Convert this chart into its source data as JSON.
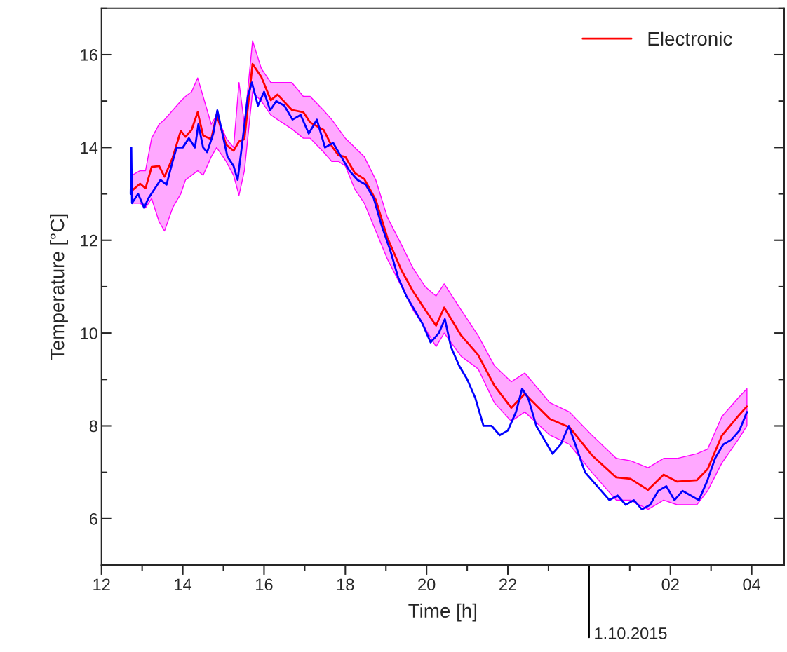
{
  "chart_data": {
    "type": "line",
    "xlabel": "Time [h]",
    "ylabel": "Temperature [°C]",
    "xlim": [
      "2015-09-30T12:00",
      "2015-10-01T04:48"
    ],
    "ylim": [
      5,
      17
    ],
    "xticks": [
      {
        "value": "2015-09-30T12:00",
        "label": "12"
      },
      {
        "value": "2015-09-30T13:00",
        "label": null
      },
      {
        "value": "2015-09-30T14:00",
        "label": "14"
      },
      {
        "value": "2015-09-30T15:00",
        "label": null
      },
      {
        "value": "2015-09-30T16:00",
        "label": "16"
      },
      {
        "value": "2015-09-30T17:00",
        "label": null
      },
      {
        "value": "2015-09-30T18:00",
        "label": "18"
      },
      {
        "value": "2015-09-30T19:00",
        "label": null
      },
      {
        "value": "2015-09-30T20:00",
        "label": "20"
      },
      {
        "value": "2015-09-30T21:00",
        "label": null
      },
      {
        "value": "2015-09-30T22:00",
        "label": "22"
      },
      {
        "value": "2015-09-30T23:00",
        "label": null
      },
      {
        "value": "2015-10-01T00:00",
        "label": null
      },
      {
        "value": "2015-10-01T01:00",
        "label": null
      },
      {
        "value": "2015-10-01T02:00",
        "label": "02"
      },
      {
        "value": "2015-10-01T03:00",
        "label": null
      },
      {
        "value": "2015-10-01T04:00",
        "label": "04"
      }
    ],
    "yticks": [
      {
        "value": 5,
        "label": null
      },
      6,
      {
        "value": 7,
        "label": null
      },
      8,
      {
        "value": 9,
        "label": null
      },
      10,
      {
        "value": 11,
        "label": null
      },
      12,
      {
        "value": 13,
        "label": null
      },
      14,
      {
        "value": 15,
        "label": null
      },
      16,
      {
        "value": 17,
        "label": null
      }
    ],
    "annotations": [
      "1.10.2015"
    ],
    "legend": "top right",
    "grid": false,
    "marker": "none",
    "line_style": "solid",
    "series": [
      {
        "name": "Electronic",
        "color": "#ff0000",
        "x": [
          "2015-09-30T12:45",
          "2015-09-30T12:57",
          "2015-09-30T13:05",
          "2015-09-30T13:14",
          "2015-09-30T13:25",
          "2015-09-30T13:33",
          "2015-09-30T13:45",
          "2015-09-30T13:57",
          "2015-09-30T14:04",
          "2015-09-30T14:13",
          "2015-09-30T14:22",
          "2015-09-30T14:30",
          "2015-09-30T14:42",
          "2015-09-30T14:50",
          "2015-09-30T15:04",
          "2015-09-30T15:15",
          "2015-09-30T15:23",
          "2015-09-30T15:31",
          "2015-09-30T15:43",
          "2015-09-30T15:56",
          "2015-09-30T16:10",
          "2015-09-30T16:20",
          "2015-09-30T16:41",
          "2015-09-30T16:58",
          "2015-09-30T17:08",
          "2015-09-30T17:28",
          "2015-09-30T17:40",
          "2015-09-30T17:50",
          "2015-09-30T18:00",
          "2015-09-30T18:14",
          "2015-09-30T18:28",
          "2015-09-30T18:45",
          "2015-09-30T19:02",
          "2015-09-30T19:23",
          "2015-09-30T19:40",
          "2015-09-30T19:58",
          "2015-09-30T20:14",
          "2015-09-30T20:26",
          "2015-09-30T20:51",
          "2015-09-30T21:16",
          "2015-09-30T21:40",
          "2015-09-30T22:05",
          "2015-09-30T22:25",
          "2015-09-30T23:02",
          "2015-09-30T23:31",
          "2015-10-01T00:04",
          "2015-10-01T00:40",
          "2015-10-01T01:01",
          "2015-10-01T01:27",
          "2015-10-01T01:50",
          "2015-10-01T02:10",
          "2015-10-01T02:39",
          "2015-10-01T02:55",
          "2015-10-01T03:16",
          "2015-10-01T03:40",
          "2015-10-01T03:53"
        ],
        "values": [
          13.07,
          13.22,
          13.12,
          13.58,
          13.6,
          13.37,
          13.78,
          14.36,
          14.23,
          14.38,
          14.76,
          14.26,
          14.18,
          14.71,
          14.06,
          13.93,
          14.13,
          14.18,
          15.8,
          15.52,
          15.02,
          15.14,
          14.81,
          14.76,
          14.54,
          14.38,
          14.03,
          13.83,
          13.8,
          13.45,
          13.32,
          12.87,
          12.06,
          11.35,
          10.9,
          10.5,
          10.16,
          10.55,
          9.95,
          9.53,
          8.87,
          8.39,
          8.69,
          8.15,
          7.97,
          7.37,
          6.89,
          6.86,
          6.62,
          6.95,
          6.8,
          6.83,
          7.07,
          7.79,
          8.21,
          8.42
        ],
        "upper": [
          13.4,
          13.5,
          13.5,
          14.2,
          14.5,
          14.6,
          14.8,
          15.0,
          15.1,
          15.2,
          15.5,
          15.1,
          14.5,
          14.7,
          14.2,
          14.0,
          15.4,
          14.5,
          16.3,
          15.7,
          15.4,
          15.4,
          15.4,
          15.1,
          15.1,
          14.8,
          14.6,
          14.4,
          14.2,
          14.0,
          13.8,
          13.3,
          12.5,
          11.9,
          11.4,
          11.0,
          10.8,
          11.06,
          10.5,
          9.95,
          9.3,
          8.95,
          9.14,
          8.5,
          8.3,
          7.8,
          7.3,
          7.25,
          7.1,
          7.3,
          7.3,
          7.4,
          7.5,
          8.2,
          8.6,
          8.8
        ],
        "lower": [
          12.8,
          12.8,
          12.7,
          12.9,
          12.4,
          12.2,
          12.7,
          13.0,
          13.3,
          13.4,
          13.5,
          13.4,
          13.8,
          14.0,
          13.7,
          13.4,
          12.97,
          13.5,
          15.2,
          15.0,
          14.7,
          14.6,
          14.4,
          14.2,
          14.2,
          13.9,
          13.7,
          13.7,
          13.6,
          13.1,
          12.8,
          12.2,
          11.6,
          11.0,
          10.5,
          10.1,
          9.71,
          10.0,
          9.5,
          9.23,
          8.5,
          8.1,
          8.3,
          7.8,
          7.6,
          7.0,
          6.4,
          6.4,
          6.2,
          6.4,
          6.3,
          6.3,
          6.6,
          7.2,
          7.7,
          8.0
        ]
      },
      {
        "color": "#0000ff",
        "x": [
          "2015-09-30T12:43",
          "2015-09-30T12:44",
          "2015-09-30T12:45",
          "2015-09-30T12:54",
          "2015-09-30T13:03",
          "2015-09-30T13:09",
          "2015-09-30T13:18",
          "2015-09-30T13:27",
          "2015-09-30T13:36",
          "2015-09-30T13:45",
          "2015-09-30T13:51",
          "2015-09-30T14:00",
          "2015-09-30T14:09",
          "2015-09-30T14:18",
          "2015-09-30T14:23",
          "2015-09-30T14:30",
          "2015-09-30T14:36",
          "2015-09-30T14:45",
          "2015-09-30T14:51",
          "2015-09-30T15:00",
          "2015-09-30T15:06",
          "2015-09-30T15:15",
          "2015-09-30T15:21",
          "2015-09-30T15:27",
          "2015-09-30T15:36",
          "2015-09-30T15:42",
          "2015-09-30T15:51",
          "2015-09-30T16:00",
          "2015-09-30T16:09",
          "2015-09-30T16:18",
          "2015-09-30T16:30",
          "2015-09-30T16:42",
          "2015-09-30T16:54",
          "2015-09-30T17:06",
          "2015-09-30T17:18",
          "2015-09-30T17:30",
          "2015-09-30T17:42",
          "2015-09-30T17:54",
          "2015-09-30T18:06",
          "2015-09-30T18:18",
          "2015-09-30T18:30",
          "2015-09-30T18:42",
          "2015-09-30T18:54",
          "2015-09-30T19:06",
          "2015-09-30T19:18",
          "2015-09-30T19:30",
          "2015-09-30T19:42",
          "2015-09-30T19:54",
          "2015-09-30T20:06",
          "2015-09-30T20:18",
          "2015-09-30T20:27",
          "2015-09-30T20:36",
          "2015-09-30T20:48",
          "2015-09-30T21:00",
          "2015-09-30T21:12",
          "2015-09-30T21:24",
          "2015-09-30T21:36",
          "2015-09-30T21:48",
          "2015-09-30T22:00",
          "2015-09-30T22:12",
          "2015-09-30T22:21",
          "2015-09-30T22:30",
          "2015-09-30T22:42",
          "2015-09-30T22:54",
          "2015-09-30T23:06",
          "2015-09-30T23:18",
          "2015-09-30T23:30",
          "2015-09-30T23:42",
          "2015-09-30T23:54",
          "2015-10-01T00:06",
          "2015-10-01T00:18",
          "2015-10-01T00:30",
          "2015-10-01T00:42",
          "2015-10-01T00:54",
          "2015-10-01T01:06",
          "2015-10-01T01:18",
          "2015-10-01T01:30",
          "2015-10-01T01:42",
          "2015-10-01T01:54",
          "2015-10-01T02:06",
          "2015-10-01T02:18",
          "2015-10-01T02:30",
          "2015-10-01T02:42",
          "2015-10-01T02:54",
          "2015-10-01T03:06",
          "2015-10-01T03:18",
          "2015-10-01T03:30",
          "2015-10-01T03:42",
          "2015-10-01T03:53"
        ],
        "values": [
          13.0,
          14.0,
          12.8,
          13.0,
          12.7,
          12.9,
          13.1,
          13.3,
          13.2,
          13.7,
          14.0,
          14.0,
          14.2,
          14.0,
          14.5,
          14.0,
          13.9,
          14.3,
          14.8,
          14.2,
          13.8,
          13.6,
          13.3,
          14.0,
          15.1,
          15.4,
          14.9,
          15.2,
          14.8,
          15.0,
          14.9,
          14.6,
          14.7,
          14.3,
          14.6,
          14.0,
          14.1,
          13.8,
          13.5,
          13.3,
          13.2,
          12.9,
          12.3,
          11.8,
          11.2,
          10.8,
          10.5,
          10.2,
          9.8,
          10.0,
          10.3,
          9.7,
          9.3,
          9.0,
          8.6,
          8.0,
          8.0,
          7.8,
          7.9,
          8.3,
          8.8,
          8.6,
          8.0,
          7.7,
          7.4,
          7.6,
          8.0,
          7.5,
          7.0,
          6.8,
          6.6,
          6.4,
          6.5,
          6.3,
          6.4,
          6.2,
          6.3,
          6.6,
          6.7,
          6.4,
          6.6,
          6.5,
          6.4,
          6.8,
          7.3,
          7.6,
          7.7,
          7.9,
          8.3
        ]
      }
    ]
  }
}
